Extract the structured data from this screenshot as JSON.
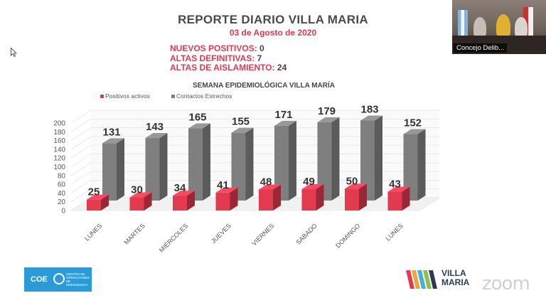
{
  "report": {
    "title": "REPORTE DIARIO VILLA MARIA",
    "date": "03 de Agosto de 2020",
    "stats": [
      {
        "label": "NUEVOS POSITIVOS:",
        "value": "0"
      },
      {
        "label": "ALTAS DEFINITIVAS:",
        "value": "7"
      },
      {
        "label": "ALTAS DE AISLAMIENTO:",
        "value": "24"
      }
    ]
  },
  "video": {
    "participant_name": "Concejo Delib..."
  },
  "logos": {
    "coe_text": "COE",
    "coe_subtext": "CENTRO DE OPERACIONES DE EMERGENCIA",
    "villa_maria_line1": "VILLA",
    "villa_maria_line2": "MARIA",
    "watermark": "zoom"
  },
  "colors": {
    "positive": "#e23a4f",
    "contacts": "#7f7f7f",
    "accent": "#e23a4f",
    "coe_blue": "#2a9bd8"
  },
  "chart_data": {
    "type": "bar",
    "title": "SEMANA EPIDEMIOLÓGICA VILLA MARÍA",
    "categories": [
      "LUNES",
      "MARTES",
      "MIÉRCOLES",
      "JUEVES",
      "VIERNES",
      "SABADO",
      "DOMINGO",
      "LUNES"
    ],
    "series": [
      {
        "name": "Positivos activos",
        "values": [
          25,
          30,
          34,
          41,
          48,
          49,
          50,
          43
        ]
      },
      {
        "name": "Contactos Estrechos",
        "values": [
          131,
          143,
          165,
          155,
          171,
          179,
          183,
          152
        ]
      }
    ],
    "yticks": [
      0,
      20,
      40,
      60,
      80,
      100,
      120,
      140,
      160,
      180,
      200
    ],
    "ylim": [
      0,
      200
    ],
    "legend": "top-left",
    "grid": true,
    "style": "3d"
  }
}
